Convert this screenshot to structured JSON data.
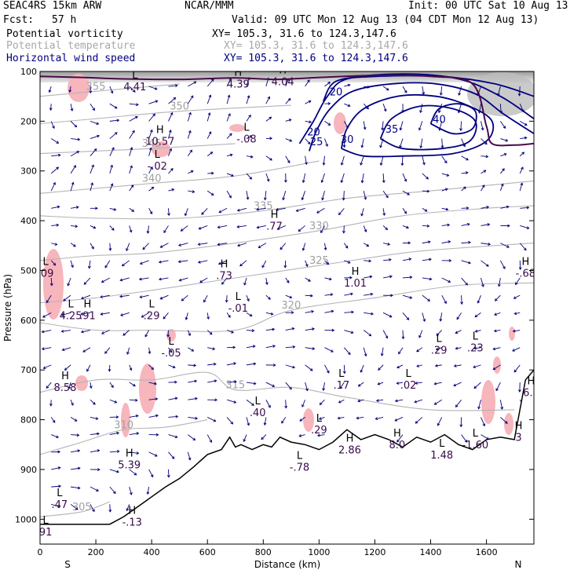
{
  "header": {
    "model": "SEAC4RS 15km ARW",
    "org": "NCAR/MMM",
    "init": "Init: 00 UTC Sat 10 Aug 13",
    "fcst_label": "Fcst:",
    "fcst_value": "57 h",
    "valid": "Valid: 09 UTC Mon 12 Aug 13 (04 CDT Mon 12 Aug 13)",
    "fields": [
      {
        "name": "Potential vorticity",
        "xy": "XY= 105.3, 31.6 to 124.3,147.6",
        "color": "#000000"
      },
      {
        "name": "Potential temperature",
        "xy": "XY= 105.3, 31.6 to 124.3,147.6",
        "color": "#a8a8a8"
      },
      {
        "name": "Horizontal wind speed",
        "xy": "XY= 105.3, 31.6 to 124.3,147.6",
        "color": "#000080"
      }
    ]
  },
  "chart_data": {
    "type": "cross-section",
    "xlabel": "Distance (km)",
    "ylabel": "Pressure (hPa)",
    "xlim": [
      0,
      1770
    ],
    "ylim": [
      1050,
      100
    ],
    "x_ticks": [
      0,
      200,
      400,
      600,
      800,
      1000,
      1200,
      1400,
      1600
    ],
    "y_ticks": [
      100,
      200,
      300,
      400,
      500,
      600,
      700,
      800,
      900,
      1000
    ],
    "x_end_labels": {
      "left": "S",
      "right": "N"
    },
    "potential_temperature_isentropes": [
      {
        "theta": 355,
        "points": [
          [
            0,
            150
          ],
          [
            200,
            140
          ],
          [
            500,
            125
          ]
        ]
      },
      {
        "theta": 350,
        "points": [
          [
            0,
            205
          ],
          [
            200,
            195
          ],
          [
            500,
            180
          ],
          [
            900,
            168
          ]
        ]
      },
      {
        "theta": 345,
        "points": [
          [
            0,
            265
          ],
          [
            200,
            260
          ],
          [
            400,
            255
          ],
          [
            700,
            245
          ]
        ]
      },
      {
        "theta": 340,
        "points": [
          [
            0,
            345
          ],
          [
            200,
            335
          ],
          [
            400,
            325
          ],
          [
            700,
            310
          ],
          [
            1000,
            280
          ]
        ]
      },
      {
        "theta": 335,
        "points": [
          [
            0,
            390
          ],
          [
            200,
            395
          ],
          [
            500,
            395
          ],
          [
            800,
            380
          ],
          [
            1100,
            355
          ],
          [
            1400,
            340
          ],
          [
            1770,
            320
          ]
        ]
      },
      {
        "theta": 330,
        "points": [
          [
            0,
            480
          ],
          [
            200,
            470
          ],
          [
            400,
            465
          ],
          [
            700,
            445
          ],
          [
            1000,
            420
          ],
          [
            1300,
            390
          ],
          [
            1600,
            375
          ],
          [
            1770,
            370
          ]
        ]
      },
      {
        "theta": 325,
        "points": [
          [
            0,
            565
          ],
          [
            200,
            555
          ],
          [
            400,
            540
          ],
          [
            700,
            515
          ],
          [
            1000,
            490
          ],
          [
            1300,
            465
          ],
          [
            1500,
            455
          ],
          [
            1770,
            445
          ]
        ]
      },
      {
        "theta": 320,
        "points": [
          [
            0,
            605
          ],
          [
            200,
            620
          ],
          [
            400,
            620
          ],
          [
            700,
            620
          ],
          [
            900,
            580
          ],
          [
            1200,
            555
          ],
          [
            1500,
            530
          ],
          [
            1770,
            525
          ]
        ]
      },
      {
        "theta": 315,
        "points": [
          [
            0,
            745
          ],
          [
            200,
            720
          ],
          [
            400,
            720
          ],
          [
            600,
            705
          ],
          [
            700,
            740
          ],
          [
            900,
            735
          ],
          [
            1100,
            755
          ],
          [
            1400,
            780
          ],
          [
            1700,
            780
          ]
        ]
      },
      {
        "theta": 310,
        "points": [
          [
            0,
            870
          ],
          [
            150,
            845
          ],
          [
            300,
            820
          ],
          [
            450,
            815
          ],
          [
            600,
            800
          ]
        ]
      },
      {
        "theta": 305,
        "points": [
          [
            0,
            995
          ],
          [
            150,
            985
          ],
          [
            250,
            965
          ]
        ]
      }
    ],
    "wind_speed_contours": [
      {
        "speed": 20,
        "points": [
          [
            1015,
            160
          ],
          [
            1060,
            120
          ],
          [
            1200,
            110
          ],
          [
            1440,
            110
          ],
          [
            1630,
            125
          ],
          [
            1770,
            150
          ]
        ]
      },
      {
        "speed": 20,
        "points": [
          [
            930,
            245
          ],
          [
            980,
            200
          ],
          [
            1030,
            150
          ],
          [
            1100,
            115
          ],
          [
            1300,
            105
          ],
          [
            1500,
            115
          ],
          [
            1650,
            150
          ],
          [
            1770,
            195
          ]
        ]
      },
      {
        "speed": 25,
        "points": [
          [
            965,
            260
          ],
          [
            990,
            220
          ],
          [
            1040,
            175
          ],
          [
            1120,
            140
          ],
          [
            1260,
            125
          ],
          [
            1420,
            125
          ],
          [
            1560,
            145
          ],
          [
            1660,
            185
          ],
          [
            1770,
            225
          ]
        ]
      },
      {
        "speed": 30,
        "points": [
          [
            1080,
            255
          ],
          [
            1100,
            215
          ],
          [
            1160,
            175
          ],
          [
            1280,
            150
          ],
          [
            1420,
            150
          ],
          [
            1540,
            170
          ],
          [
            1620,
            200
          ],
          [
            1600,
            240
          ],
          [
            1480,
            265
          ],
          [
            1300,
            270
          ],
          [
            1160,
            270
          ],
          [
            1080,
            255
          ]
        ]
      },
      {
        "speed": 35,
        "points": [
          [
            1220,
            235
          ],
          [
            1260,
            195
          ],
          [
            1360,
            170
          ],
          [
            1480,
            175
          ],
          [
            1560,
            200
          ],
          [
            1540,
            240
          ],
          [
            1440,
            255
          ],
          [
            1300,
            255
          ],
          [
            1220,
            235
          ]
        ]
      },
      {
        "speed": 40,
        "points": [
          [
            1400,
            205
          ],
          [
            1430,
            175
          ],
          [
            1500,
            165
          ],
          [
            1560,
            180
          ],
          [
            1550,
            215
          ],
          [
            1480,
            225
          ],
          [
            1400,
            205
          ]
        ]
      }
    ],
    "pv_extremes": [
      {
        "type": "L",
        "value": "4.41",
        "x": 340,
        "y": 125
      },
      {
        "type": "H",
        "value": "4.39",
        "x": 710,
        "y": 120
      },
      {
        "type": "H",
        "value": "4.04",
        "x": 870,
        "y": 115
      },
      {
        "type": "H",
        "value": "10.57",
        "x": 430,
        "y": 235
      },
      {
        "type": "L",
        "value": "-.02",
        "x": 420,
        "y": 285
      },
      {
        "type": "L",
        "value": "-.08",
        "x": 740,
        "y": 230
      },
      {
        "type": "H",
        "value": ".77",
        "x": 840,
        "y": 405
      },
      {
        "type": "H",
        "value": ".73",
        "x": 660,
        "y": 505
      },
      {
        "type": "H",
        "value": "1.01",
        "x": 1130,
        "y": 520
      },
      {
        "type": "H",
        "value": "-.68",
        "x": 1740,
        "y": 500
      },
      {
        "type": "L",
        "value": "4.25",
        "x": 110,
        "y": 585
      },
      {
        "type": "H",
        "value": ".91",
        "x": 170,
        "y": 585
      },
      {
        "type": "L",
        "value": ".29",
        "x": 400,
        "y": 585
      },
      {
        "type": "L",
        "value": "-.01",
        "x": 710,
        "y": 570
      },
      {
        "type": "L",
        "value": "-.05",
        "x": 470,
        "y": 660
      },
      {
        "type": "H",
        "value": "8.58",
        "x": 90,
        "y": 730
      },
      {
        "type": "L",
        "value": ".29",
        "x": 1430,
        "y": 655
      },
      {
        "type": "L",
        "value": ".23",
        "x": 1560,
        "y": 650
      },
      {
        "type": "L",
        "value": ".17",
        "x": 1080,
        "y": 725
      },
      {
        "type": "L",
        "value": ".02",
        "x": 1320,
        "y": 725
      },
      {
        "type": "H",
        "value": "6.2",
        "x": 1760,
        "y": 740
      },
      {
        "type": "L",
        "value": ".40",
        "x": 780,
        "y": 780
      },
      {
        "type": "L",
        "value": ".29",
        "x": 1000,
        "y": 815
      },
      {
        "type": "H",
        "value": "5.39",
        "x": 320,
        "y": 885
      },
      {
        "type": "H",
        "value": "2.86",
        "x": 1110,
        "y": 855
      },
      {
        "type": "H",
        "value": "8.0",
        "x": 1280,
        "y": 845
      },
      {
        "type": "L",
        "value": "1.48",
        "x": 1440,
        "y": 865
      },
      {
        "type": "L",
        "value": "-1.60",
        "x": 1560,
        "y": 845
      },
      {
        "type": "H",
        "value": "3",
        "x": 1715,
        "y": 830
      },
      {
        "type": "L",
        "value": "-.78",
        "x": 930,
        "y": 890
      },
      {
        "type": "L",
        "value": ".47",
        "x": 70,
        "y": 965
      },
      {
        "type": "H",
        "value": "-.13",
        "x": 330,
        "y": 1000
      },
      {
        "type": "L",
        "value": "91",
        "x": 20,
        "y": 1020
      },
      {
        "type": "L",
        "value": ".09",
        "x": 20,
        "y": 500
      }
    ],
    "terrain_pressure": [
      [
        0,
        1010
      ],
      [
        250,
        1010
      ],
      [
        300,
        995
      ],
      [
        350,
        975
      ],
      [
        400,
        955
      ],
      [
        450,
        935
      ],
      [
        500,
        918
      ],
      [
        550,
        895
      ],
      [
        600,
        870
      ],
      [
        650,
        860
      ],
      [
        680,
        835
      ],
      [
        700,
        855
      ],
      [
        720,
        850
      ],
      [
        760,
        860
      ],
      [
        800,
        850
      ],
      [
        830,
        855
      ],
      [
        860,
        835
      ],
      [
        900,
        845
      ],
      [
        950,
        850
      ],
      [
        1000,
        860
      ],
      [
        1050,
        845
      ],
      [
        1100,
        820
      ],
      [
        1150,
        840
      ],
      [
        1200,
        830
      ],
      [
        1250,
        840
      ],
      [
        1300,
        855
      ],
      [
        1350,
        835
      ],
      [
        1400,
        845
      ],
      [
        1450,
        830
      ],
      [
        1500,
        850
      ],
      [
        1550,
        860
      ],
      [
        1600,
        840
      ],
      [
        1650,
        835
      ],
      [
        1700,
        840
      ],
      [
        1740,
        720
      ],
      [
        1770,
        700
      ]
    ]
  }
}
